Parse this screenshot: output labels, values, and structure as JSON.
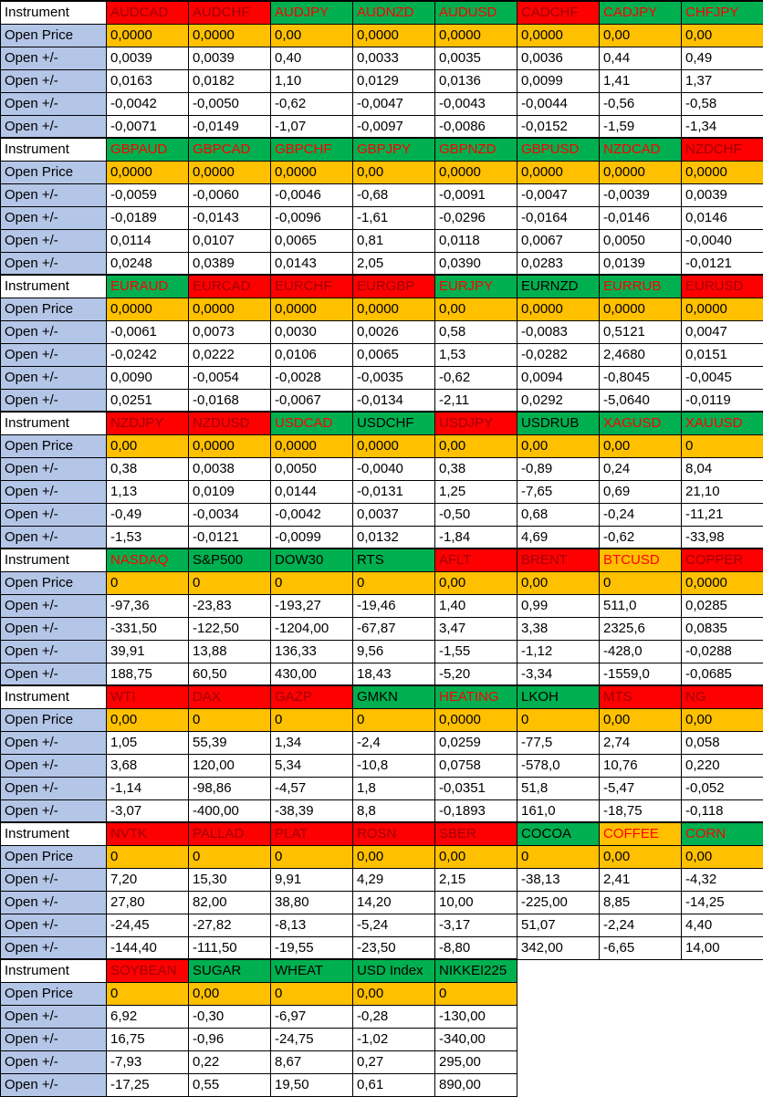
{
  "row_labels": {
    "instrument": "Instrument",
    "open_price": "Open Price",
    "open_delta": "Open +/-"
  },
  "colors": {
    "green": "#00B050",
    "red": "#FF0000",
    "orange": "#FFC000",
    "label_blue": "#B4C6E7",
    "text_red": "#FF0000",
    "text_dark_red": "#9C0006",
    "text_black": "#000000",
    "grid": "#000000"
  },
  "blocks": [
    {
      "instruments": [
        {
          "name": "AUDCAD",
          "bg": "red",
          "fg": "darkred"
        },
        {
          "name": "AUDCHF",
          "bg": "red",
          "fg": "darkred"
        },
        {
          "name": "AUDJPY",
          "bg": "green",
          "fg": "red"
        },
        {
          "name": "AUDNZD",
          "bg": "green",
          "fg": "red"
        },
        {
          "name": "AUDUSD",
          "bg": "green",
          "fg": "red"
        },
        {
          "name": "CADCHF",
          "bg": "red",
          "fg": "darkred"
        },
        {
          "name": "CADJPY",
          "bg": "green",
          "fg": "red"
        },
        {
          "name": "CHFJPY",
          "bg": "green",
          "fg": "red"
        }
      ],
      "open_price": [
        "0,0000",
        "0,0000",
        "0,00",
        "0,0000",
        "0,0000",
        "0,0000",
        "0,00",
        "0,00"
      ],
      "delta_rows": [
        [
          "0,0039",
          "0,0039",
          "0,40",
          "0,0033",
          "0,0035",
          "0,0036",
          "0,44",
          "0,49"
        ],
        [
          "0,0163",
          "0,0182",
          "1,10",
          "0,0129",
          "0,0136",
          "0,0099",
          "1,41",
          "1,37"
        ],
        [
          "-0,0042",
          "-0,0050",
          "-0,62",
          "-0,0047",
          "-0,0043",
          "-0,0044",
          "-0,56",
          "-0,58"
        ],
        [
          "-0,0071",
          "-0,0149",
          "-1,07",
          "-0,0097",
          "-0,0086",
          "-0,0152",
          "-1,59",
          "-1,34"
        ]
      ]
    },
    {
      "instruments": [
        {
          "name": "GBPAUD",
          "bg": "green",
          "fg": "red"
        },
        {
          "name": "GBPCAD",
          "bg": "green",
          "fg": "red"
        },
        {
          "name": "GBPCHF",
          "bg": "green",
          "fg": "red"
        },
        {
          "name": "GBPJPY",
          "bg": "green",
          "fg": "red"
        },
        {
          "name": "GBPNZD",
          "bg": "green",
          "fg": "red"
        },
        {
          "name": "GBPUSD",
          "bg": "green",
          "fg": "red"
        },
        {
          "name": "NZDCAD",
          "bg": "green",
          "fg": "red"
        },
        {
          "name": "NZDCHF",
          "bg": "red",
          "fg": "darkred"
        }
      ],
      "open_price": [
        "0,0000",
        "0,0000",
        "0,0000",
        "0,00",
        "0,0000",
        "0,0000",
        "0,0000",
        "0,0000"
      ],
      "delta_rows": [
        [
          "-0,0059",
          "-0,0060",
          "-0,0046",
          "-0,68",
          "-0,0091",
          "-0,0047",
          "-0,0039",
          "0,0039"
        ],
        [
          "-0,0189",
          "-0,0143",
          "-0,0096",
          "-1,61",
          "-0,0296",
          "-0,0164",
          "-0,0146",
          "0,0146"
        ],
        [
          "0,0114",
          "0,0107",
          "0,0065",
          "0,81",
          "0,0118",
          "0,0067",
          "0,0050",
          "-0,0040"
        ],
        [
          "0,0248",
          "0,0389",
          "0,0143",
          "2,05",
          "0,0390",
          "0,0283",
          "0,0139",
          "-0,0121"
        ]
      ]
    },
    {
      "instruments": [
        {
          "name": "EURAUD",
          "bg": "green",
          "fg": "red"
        },
        {
          "name": "EURCAD",
          "bg": "red",
          "fg": "darkred"
        },
        {
          "name": "EURCHF",
          "bg": "red",
          "fg": "darkred"
        },
        {
          "name": "EURGBP",
          "bg": "red",
          "fg": "darkred"
        },
        {
          "name": "EURJPY",
          "bg": "green",
          "fg": "red"
        },
        {
          "name": "EURNZD",
          "bg": "green",
          "fg": "black"
        },
        {
          "name": "EURRUB",
          "bg": "green",
          "fg": "red"
        },
        {
          "name": "EURUSD",
          "bg": "red",
          "fg": "darkred"
        }
      ],
      "open_price": [
        "0,0000",
        "0,0000",
        "0,0000",
        "0,0000",
        "0,00",
        "0,0000",
        "0,0000",
        "0,0000"
      ],
      "delta_rows": [
        [
          "-0,0061",
          "0,0073",
          "0,0030",
          "0,0026",
          "0,58",
          "-0,0083",
          "0,5121",
          "0,0047"
        ],
        [
          "-0,0242",
          "0,0222",
          "0,0106",
          "0,0065",
          "1,53",
          "-0,0282",
          "2,4680",
          "0,0151"
        ],
        [
          "0,0090",
          "-0,0054",
          "-0,0028",
          "-0,0035",
          "-0,62",
          "0,0094",
          "-0,8045",
          "-0,0045"
        ],
        [
          "0,0251",
          "-0,0168",
          "-0,0067",
          "-0,0134",
          "-2,11",
          "0,0292",
          "-5,0640",
          "-0,0119"
        ]
      ]
    },
    {
      "instruments": [
        {
          "name": "NZDJPY",
          "bg": "red",
          "fg": "darkred"
        },
        {
          "name": "NZDUSD",
          "bg": "red",
          "fg": "darkred"
        },
        {
          "name": "USDCAD",
          "bg": "green",
          "fg": "red"
        },
        {
          "name": "USDCHF",
          "bg": "green",
          "fg": "black"
        },
        {
          "name": "USDJPY",
          "bg": "red",
          "fg": "darkred"
        },
        {
          "name": "USDRUB",
          "bg": "green",
          "fg": "black"
        },
        {
          "name": "XAGUSD",
          "bg": "green",
          "fg": "red"
        },
        {
          "name": "XAUUSD",
          "bg": "green",
          "fg": "red"
        }
      ],
      "open_price": [
        "0,00",
        "0,0000",
        "0,0000",
        "0,0000",
        "0,00",
        "0,00",
        "0,00",
        "0"
      ],
      "delta_rows": [
        [
          "0,38",
          "0,0038",
          "0,0050",
          "-0,0040",
          "0,38",
          "-0,89",
          "0,24",
          "8,04"
        ],
        [
          "1,13",
          "0,0109",
          "0,0144",
          "-0,0131",
          "1,25",
          "-7,65",
          "0,69",
          "21,10"
        ],
        [
          "-0,49",
          "-0,0034",
          "-0,0042",
          "0,0037",
          "-0,50",
          "0,68",
          "-0,24",
          "-11,21"
        ],
        [
          "-1,53",
          "-0,0121",
          "-0,0099",
          "0,0132",
          "-1,84",
          "4,69",
          "-0,62",
          "-33,98"
        ]
      ]
    },
    {
      "instruments": [
        {
          "name": "NASDAQ",
          "bg": "green",
          "fg": "red"
        },
        {
          "name": "S&P500",
          "bg": "green",
          "fg": "black"
        },
        {
          "name": "DOW30",
          "bg": "green",
          "fg": "black"
        },
        {
          "name": "RTS",
          "bg": "green",
          "fg": "black"
        },
        {
          "name": "AFLT",
          "bg": "red",
          "fg": "darkred"
        },
        {
          "name": "BRENT",
          "bg": "red",
          "fg": "darkred"
        },
        {
          "name": "BTCUSD",
          "bg": "orange",
          "fg": "red"
        },
        {
          "name": "COPPER",
          "bg": "red",
          "fg": "darkred"
        }
      ],
      "open_price": [
        "0",
        "0",
        "0",
        "0",
        "0,00",
        "0,00",
        "0",
        "0,0000"
      ],
      "delta_rows": [
        [
          "-97,36",
          "-23,83",
          "-193,27",
          "-19,46",
          "1,40",
          "0,99",
          "511,0",
          "0,0285"
        ],
        [
          "-331,50",
          "-122,50",
          "-1204,00",
          "-67,87",
          "3,47",
          "3,38",
          "2325,6",
          "0,0835"
        ],
        [
          "39,91",
          "13,88",
          "136,33",
          "9,56",
          "-1,55",
          "-1,12",
          "-428,0",
          "-0,0288"
        ],
        [
          "188,75",
          "60,50",
          "430,00",
          "18,43",
          "-5,20",
          "-3,34",
          "-1559,0",
          "-0,0685"
        ]
      ]
    },
    {
      "instruments": [
        {
          "name": "WTI",
          "bg": "red",
          "fg": "darkred"
        },
        {
          "name": "DAX",
          "bg": "red",
          "fg": "darkred"
        },
        {
          "name": "GAZP",
          "bg": "red",
          "fg": "darkred"
        },
        {
          "name": "GMKN",
          "bg": "green",
          "fg": "black"
        },
        {
          "name": "HEATING",
          "bg": "green",
          "fg": "red"
        },
        {
          "name": "LKOH",
          "bg": "green",
          "fg": "black"
        },
        {
          "name": "MTS",
          "bg": "red",
          "fg": "darkred"
        },
        {
          "name": "NG",
          "bg": "red",
          "fg": "darkred"
        }
      ],
      "open_price": [
        "0,00",
        "0",
        "0",
        "0",
        "0,0000",
        "0",
        "0,00",
        "0,00"
      ],
      "delta_rows": [
        [
          "1,05",
          "55,39",
          "1,34",
          "-2,4",
          "0,0259",
          "-77,5",
          "2,74",
          "0,058"
        ],
        [
          "3,68",
          "120,00",
          "5,34",
          "-10,8",
          "0,0758",
          "-578,0",
          "10,76",
          "0,220"
        ],
        [
          "-1,14",
          "-98,86",
          "-4,57",
          "1,8",
          "-0,0351",
          "51,8",
          "-5,47",
          "-0,052"
        ],
        [
          "-3,07",
          "-400,00",
          "-38,39",
          "8,8",
          "-0,1893",
          "161,0",
          "-18,75",
          "-0,118"
        ]
      ]
    },
    {
      "instruments": [
        {
          "name": "NVTK",
          "bg": "red",
          "fg": "darkred"
        },
        {
          "name": "PALLAD",
          "bg": "red",
          "fg": "darkred"
        },
        {
          "name": "PLAT",
          "bg": "red",
          "fg": "darkred"
        },
        {
          "name": "ROSN",
          "bg": "red",
          "fg": "darkred"
        },
        {
          "name": "SBER",
          "bg": "red",
          "fg": "darkred"
        },
        {
          "name": "COCOA",
          "bg": "green",
          "fg": "black"
        },
        {
          "name": "COFFEE",
          "bg": "orange",
          "fg": "red"
        },
        {
          "name": "CORN",
          "bg": "green",
          "fg": "red"
        }
      ],
      "open_price": [
        "0",
        "0",
        "0",
        "0,00",
        "0,00",
        "0",
        "0,00",
        "0,00"
      ],
      "delta_rows": [
        [
          "7,20",
          "15,30",
          "9,91",
          "4,29",
          "2,15",
          "-38,13",
          "2,41",
          "-4,32"
        ],
        [
          "27,80",
          "82,00",
          "38,80",
          "14,20",
          "10,00",
          "-225,00",
          "8,85",
          "-14,25"
        ],
        [
          "-24,45",
          "-27,82",
          "-8,13",
          "-5,24",
          "-3,17",
          "51,07",
          "-2,24",
          "4,40"
        ],
        [
          "-144,40",
          "-111,50",
          "-19,55",
          "-23,50",
          "-8,80",
          "342,00",
          "-6,65",
          "14,00"
        ]
      ]
    },
    {
      "instruments": [
        {
          "name": "SOYBEAN",
          "bg": "red",
          "fg": "darkred"
        },
        {
          "name": "SUGAR",
          "bg": "green",
          "fg": "black"
        },
        {
          "name": "WHEAT",
          "bg": "green",
          "fg": "black"
        },
        {
          "name": "USD Index",
          "bg": "green",
          "fg": "black"
        },
        {
          "name": "NIKKEI225",
          "bg": "green",
          "fg": "black"
        }
      ],
      "open_price": [
        "0",
        "0,00",
        "0",
        "0,00",
        "0"
      ],
      "delta_rows": [
        [
          "6,92",
          "-0,30",
          "-6,97",
          "-0,28",
          "-130,00"
        ],
        [
          "16,75",
          "-0,96",
          "-24,75",
          "-1,02",
          "-340,00"
        ],
        [
          "-7,93",
          "0,22",
          "8,67",
          "0,27",
          "295,00"
        ],
        [
          "-17,25",
          "0,55",
          "19,50",
          "0,61",
          "890,00"
        ]
      ]
    }
  ]
}
